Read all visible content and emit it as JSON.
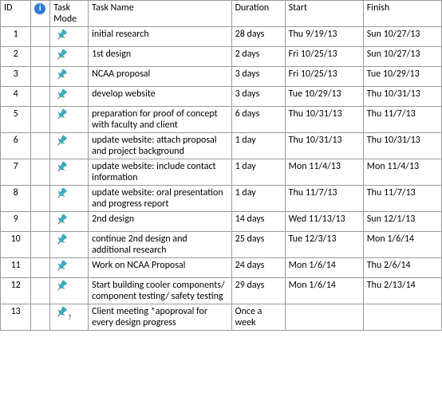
{
  "columns": {
    "id": "ID",
    "info": "",
    "mode": "Task Mode",
    "name": "Task Name",
    "duration": "Duration",
    "start": "Start",
    "finish": "Finish"
  },
  "icon_color": "#3bb5c9",
  "rows": [
    {
      "id": "1",
      "name": "initial research",
      "duration": "28 days",
      "start": "Thu 9/19/13",
      "finish": "Sun 10/27/13",
      "mode": "pin"
    },
    {
      "id": "2",
      "name": "1st design",
      "duration": "2 days",
      "start": "Fri 10/25/13",
      "finish": "Sun 10/27/13",
      "mode": "pin"
    },
    {
      "id": "3",
      "name": "NCAA proposal",
      "duration": "3 days",
      "start": "Fri 10/25/13",
      "finish": "Tue 10/29/13",
      "mode": "pin"
    },
    {
      "id": "4",
      "name": "develop website",
      "duration": "3 days",
      "start": "Tue 10/29/13",
      "finish": "Thu 10/31/13",
      "mode": "pin"
    },
    {
      "id": "5",
      "name": "preparation for proof of concept with faculty and client",
      "duration": "6 days",
      "start": "Thu 10/31/13",
      "finish": "Thu 11/7/13",
      "mode": "pin"
    },
    {
      "id": "6",
      "name": "update website: attach proposal and project background",
      "duration": "1 day",
      "start": "Thu 10/31/13",
      "finish": "Thu 10/31/13",
      "mode": "pin"
    },
    {
      "id": "7",
      "name": "update website: include contact information",
      "duration": "1 day",
      "start": "Mon 11/4/13",
      "finish": "Mon 11/4/13",
      "mode": "pin"
    },
    {
      "id": "8",
      "name": "update website: oral presentation and progress report",
      "duration": "1 day",
      "start": "Thu 11/7/13",
      "finish": "Thu 11/7/13",
      "mode": "pin"
    },
    {
      "id": "9",
      "name": "2nd design",
      "duration": "14 days",
      "start": "Wed 11/13/13",
      "finish": "Sun 12/1/13",
      "mode": "pin"
    },
    {
      "id": "10",
      "name": "continue 2nd design and additional research",
      "duration": "25 days",
      "start": "Tue 12/3/13",
      "finish": "Mon 1/6/14",
      "mode": "pin"
    },
    {
      "id": "11",
      "name": "Work on NCAA Proposal",
      "duration": "24 days",
      "start": "Mon 1/6/14",
      "finish": "Thu 2/6/14",
      "mode": "pin"
    },
    {
      "id": "12",
      "name": "Start building cooler components/ component testing/ safety testing",
      "duration": "29 days",
      "start": "Mon 1/6/14",
      "finish": "Thu 2/13/14",
      "mode": "pin"
    },
    {
      "id": "13",
      "name": "Client meeting *apoproval for every design progress",
      "duration": "Once a week",
      "start": "",
      "finish": "",
      "mode": "pin-question"
    }
  ]
}
